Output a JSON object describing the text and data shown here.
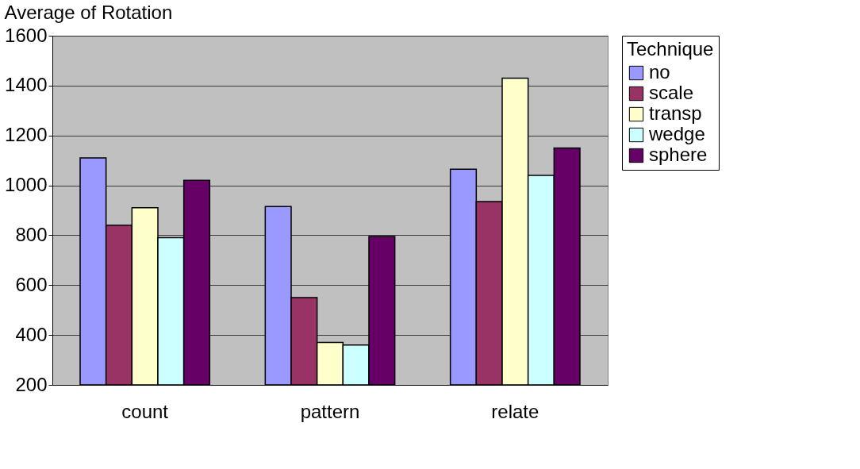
{
  "chart_data": {
    "type": "bar",
    "title": "Average of Rotation",
    "legend_title": "Technique",
    "categories": [
      "count",
      "pattern",
      "relate"
    ],
    "series": [
      {
        "name": "no",
        "color": "#9999ff",
        "values": [
          1110,
          915,
          1065
        ]
      },
      {
        "name": "scale",
        "color": "#993366",
        "values": [
          840,
          550,
          935
        ]
      },
      {
        "name": "transp",
        "color": "#ffffcc",
        "values": [
          910,
          370,
          1430
        ]
      },
      {
        "name": "wedge",
        "color": "#ccffff",
        "values": [
          790,
          360,
          1040
        ]
      },
      {
        "name": "sphere",
        "color": "#660066",
        "values": [
          1020,
          795,
          1150
        ]
      }
    ],
    "ylim": [
      200,
      1600
    ],
    "yticks": [
      200,
      400,
      600,
      800,
      1000,
      1200,
      1400,
      1600
    ],
    "grid": "y",
    "legend": "right"
  }
}
